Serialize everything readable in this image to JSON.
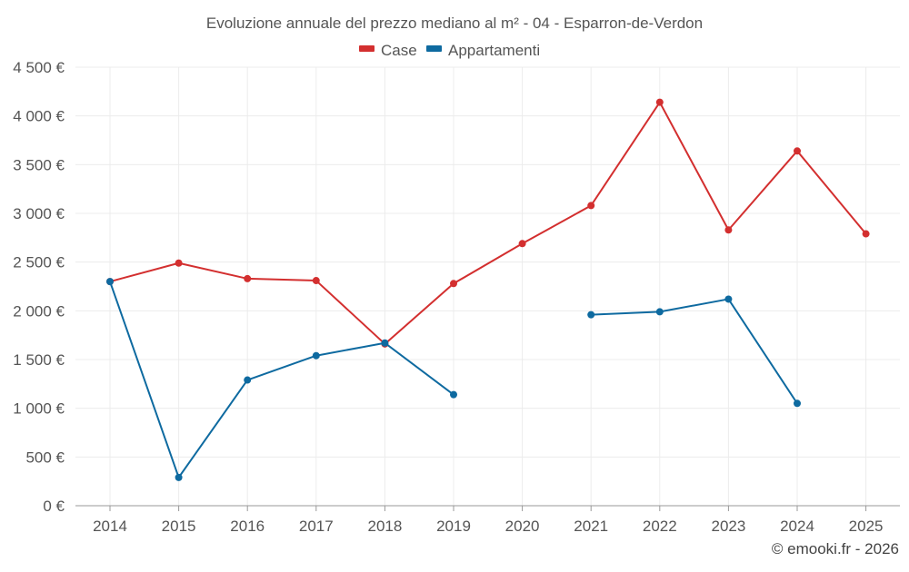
{
  "chart_data": {
    "type": "line",
    "title": "Evoluzione annuale del prezzo mediano al m² - 04 - Esparron-de-Verdon",
    "xlabel": "",
    "ylabel": "",
    "categories": [
      "2014",
      "2015",
      "2016",
      "2017",
      "2018",
      "2019",
      "2020",
      "2021",
      "2022",
      "2023",
      "2024",
      "2025"
    ],
    "ylim": [
      0,
      4500
    ],
    "yticks": [
      0,
      500,
      1000,
      1500,
      2000,
      2500,
      3000,
      3500,
      4000,
      4500
    ],
    "ytick_labels": [
      "0 €",
      "500 €",
      "1 000 €",
      "1 500 €",
      "2 000 €",
      "2 500 €",
      "3 000 €",
      "3 500 €",
      "4 000 €",
      "4 500 €"
    ],
    "grid": true,
    "legend_position": "top-center",
    "series": [
      {
        "name": "Case",
        "color": "#d32f2f",
        "values": [
          2300,
          2490,
          2330,
          2310,
          1660,
          2280,
          2690,
          3080,
          4140,
          2830,
          3640,
          2790
        ]
      },
      {
        "name": "Appartamenti",
        "color": "#0e6aa0",
        "values": [
          2300,
          290,
          1290,
          1540,
          1670,
          1140,
          null,
          1960,
          1990,
          2120,
          1050,
          null
        ]
      }
    ]
  },
  "footer": {
    "credit": "© emooki.fr - 2026"
  }
}
